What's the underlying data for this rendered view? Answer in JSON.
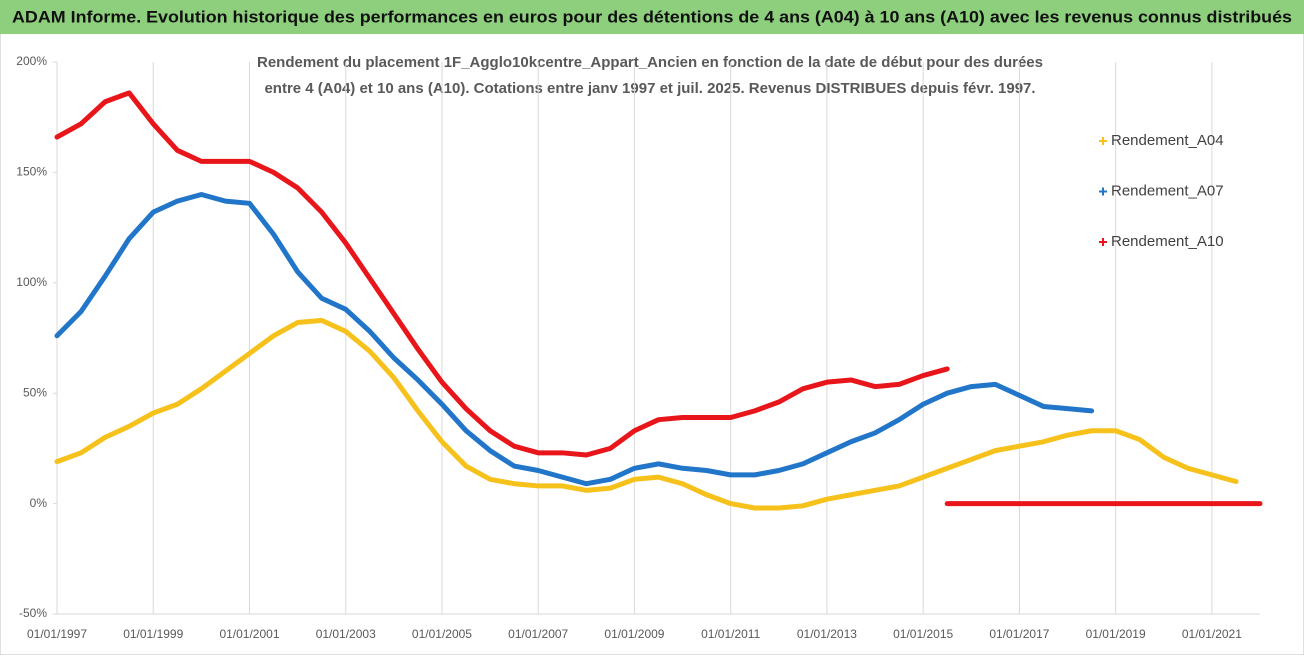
{
  "chart_data": {
    "type": "line",
    "title": "ADAM Informe. Evolution historique des performances en euros pour des détentions de 4 ans (A04) à 10 ans (A10) avec les revenus connus distribués",
    "subtitle": [
      "Rendement du placement 1F_Agglo10kcentre_Appart_Ancien en fonction de la date de début pour des durées",
      "entre 4 (A04) et 10 ans (A10).  Cotations entre janv 1997 et juil. 2025. Revenus DISTRIBUES depuis févr. 1997."
    ],
    "ylim": [
      -50,
      200
    ],
    "yticks": [
      {
        "value": -50,
        "label": "-50%"
      },
      {
        "value": 0,
        "label": "0%"
      },
      {
        "value": 50,
        "label": "50%"
      },
      {
        "value": 100,
        "label": "100%"
      },
      {
        "value": 150,
        "label": "150%"
      },
      {
        "value": 200,
        "label": "200%"
      }
    ],
    "xlim": [
      "01/01/1997",
      "01/01/2022"
    ],
    "xticks": [
      "01/01/1997",
      "01/01/1999",
      "01/01/2001",
      "01/01/2003",
      "01/01/2005",
      "01/01/2007",
      "01/01/2009",
      "01/01/2011",
      "01/01/2013",
      "01/01/2015",
      "01/01/2017",
      "01/01/2019",
      "01/01/2021"
    ],
    "grid": "x",
    "legend": "right",
    "series": [
      {
        "name": "Rendement_A04",
        "color": "#f5c11a",
        "x": [
          "01/01/1997",
          "01/07/1997",
          "01/01/1998",
          "01/07/1998",
          "01/01/1999",
          "01/07/1999",
          "01/01/2000",
          "01/07/2000",
          "01/01/2001",
          "01/07/2001",
          "01/01/2002",
          "01/07/2002",
          "01/01/2003",
          "01/07/2003",
          "01/01/2004",
          "01/07/2004",
          "01/01/2005",
          "01/07/2005",
          "01/01/2006",
          "01/07/2006",
          "01/01/2007",
          "01/07/2007",
          "01/01/2008",
          "01/07/2008",
          "01/01/2009",
          "01/07/2009",
          "01/01/2010",
          "01/07/2010",
          "01/01/2011",
          "01/07/2011",
          "01/01/2012",
          "01/07/2012",
          "01/01/2013",
          "01/07/2013",
          "01/01/2014",
          "01/07/2014",
          "01/01/2015",
          "01/07/2015",
          "01/01/2016",
          "01/07/2016",
          "01/01/2017",
          "01/07/2017",
          "01/01/2018",
          "01/07/2018",
          "01/01/2019",
          "01/07/2019",
          "01/01/2020",
          "01/07/2020",
          "01/01/2021",
          "01/07/2021"
        ],
        "values": [
          19,
          23,
          30,
          35,
          41,
          45,
          52,
          60,
          68,
          76,
          82,
          83,
          78,
          69,
          57,
          42,
          28,
          17,
          11,
          9,
          8,
          8,
          6,
          7,
          11,
          12,
          9,
          4,
          0,
          -2,
          -2,
          -1,
          2,
          4,
          6,
          8,
          12,
          16,
          20,
          24,
          26,
          28,
          31,
          33,
          33,
          29,
          21,
          16,
          13,
          10
        ]
      },
      {
        "name": "Rendement_A07",
        "color": "#2176c9",
        "x": [
          "01/01/1997",
          "01/07/1997",
          "01/01/1998",
          "01/07/1998",
          "01/01/1999",
          "01/07/1999",
          "01/01/2000",
          "01/07/2000",
          "01/01/2001",
          "01/07/2001",
          "01/01/2002",
          "01/07/2002",
          "01/01/2003",
          "01/07/2003",
          "01/01/2004",
          "01/07/2004",
          "01/01/2005",
          "01/07/2005",
          "01/01/2006",
          "01/07/2006",
          "01/01/2007",
          "01/07/2007",
          "01/01/2008",
          "01/07/2008",
          "01/01/2009",
          "01/07/2009",
          "01/01/2010",
          "01/07/2010",
          "01/01/2011",
          "01/07/2011",
          "01/01/2012",
          "01/07/2012",
          "01/01/2013",
          "01/07/2013",
          "01/01/2014",
          "01/07/2014",
          "01/01/2015",
          "01/07/2015",
          "01/01/2016",
          "01/07/2016",
          "01/01/2017",
          "01/07/2017",
          "01/01/2018",
          "01/07/2018"
        ],
        "values": [
          76,
          87,
          103,
          120,
          132,
          137,
          140,
          137,
          136,
          122,
          105,
          93,
          88,
          78,
          66,
          56,
          45,
          33,
          24,
          17,
          15,
          12,
          9,
          11,
          16,
          18,
          16,
          15,
          13,
          13,
          15,
          18,
          23,
          28,
          32,
          38,
          45,
          50,
          53,
          54,
          49,
          44,
          43,
          42
        ]
      },
      {
        "name": "Rendement_A10",
        "color": "#e8161b",
        "x": [
          "01/01/1997",
          "01/07/1997",
          "01/01/1998",
          "01/07/1998",
          "01/01/1999",
          "01/07/1999",
          "01/01/2000",
          "01/07/2000",
          "01/01/2001",
          "01/07/2001",
          "01/01/2002",
          "01/07/2002",
          "01/01/2003",
          "01/07/2003",
          "01/01/2004",
          "01/07/2004",
          "01/01/2005",
          "01/07/2005",
          "01/01/2006",
          "01/07/2006",
          "01/01/2007",
          "01/07/2007",
          "01/01/2008",
          "01/07/2008",
          "01/01/2009",
          "01/07/2009",
          "01/01/2010",
          "01/07/2010",
          "01/01/2011",
          "01/07/2011",
          "01/01/2012",
          "01/07/2012",
          "01/01/2013",
          "01/07/2013",
          "01/01/2014",
          "01/07/2014",
          "01/01/2015",
          "01/07/2015",
          "01/07/2015",
          "01/07/2015",
          "01/01/2016",
          "01/07/2016",
          "01/01/2017",
          "01/07/2017",
          "01/01/2018",
          "01/07/2018",
          "01/01/2019",
          "01/07/2019",
          "01/01/2020",
          "01/07/2020",
          "01/01/2021",
          "01/07/2021",
          "01/01/2022"
        ],
        "values": [
          166,
          172,
          182,
          186,
          172,
          160,
          155,
          155,
          155,
          150,
          143,
          132,
          118,
          102,
          86,
          70,
          55,
          43,
          33,
          26,
          23,
          23,
          22,
          25,
          33,
          38,
          39,
          39,
          39,
          42,
          46,
          52,
          55,
          56,
          53,
          54,
          58,
          61,
          null,
          0,
          0,
          0,
          0,
          0,
          0,
          0,
          0,
          0,
          0,
          0,
          0,
          0,
          0
        ]
      }
    ]
  }
}
